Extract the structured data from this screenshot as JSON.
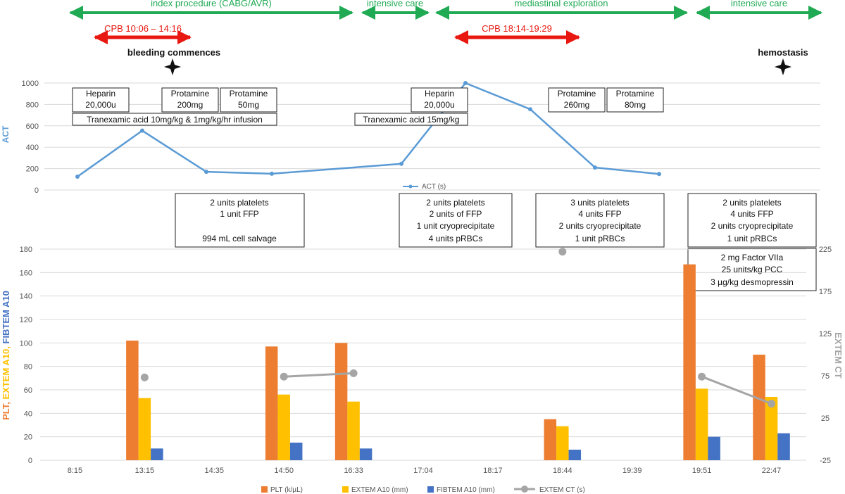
{
  "colors": {
    "phase": "#1faa53",
    "cpb": "#e8170f",
    "act_line": "#5b9bd5",
    "plt": "#ed7d31",
    "extem_a10": "#ffc000",
    "fibtem_a10": "#4472c4",
    "extem_ct": "#a5a5a5",
    "grid": "#d9d9d9"
  },
  "phases": [
    {
      "label": "index procedure  (CABG/AVR)"
    },
    {
      "label": "intensive  care"
    },
    {
      "label": "mediastinal  exploration"
    },
    {
      "label": "intensive  care"
    }
  ],
  "cpb": [
    {
      "label": "CPB 10:06 – 14:16"
    },
    {
      "label": "CPB 18:14-19:29"
    }
  ],
  "events": [
    {
      "label": "bleeding commences",
      "icon": "star-icon"
    },
    {
      "label": "hemostasis",
      "icon": "star-icon"
    }
  ],
  "drug_boxes": [
    {
      "lines": [
        "Heparin",
        "20,000u"
      ]
    },
    {
      "lines": [
        "Protamine",
        "200mg"
      ]
    },
    {
      "lines": [
        "Protamine",
        "50mg"
      ]
    },
    {
      "lines": [
        "Tranexamic acid 10mg/kg & 1mg/kg/hr infusion"
      ]
    },
    {
      "lines": [
        "Heparin",
        "20,000u"
      ]
    },
    {
      "lines": [
        "Tranexamic acid 15mg/kg"
      ]
    },
    {
      "lines": [
        "Protamine",
        "260mg"
      ]
    },
    {
      "lines": [
        "Protamine",
        "80mg"
      ]
    }
  ],
  "transfusion_boxes": [
    {
      "lines": [
        "2 units platelets",
        "1 unit FFP",
        "",
        "994 mL cell salvage"
      ]
    },
    {
      "lines": [
        "2 units platelets",
        "2 units of FFP",
        "1 unit cryoprecipitate",
        "4 units pRBCs"
      ]
    },
    {
      "lines": [
        "3 units platelets",
        "4 units FFP",
        "2 units cryoprecipitate",
        "1 unit pRBCs"
      ]
    },
    {
      "lines": [
        "2 units platelets",
        "4 units FFP",
        "2 units cryoprecipitate",
        "1 unit pRBCs"
      ]
    },
    {
      "lines": [
        "2 mg Factor VIIa",
        "25 units/kg  PCC",
        "3 µg/kg desmopressin"
      ]
    }
  ],
  "chart_data": [
    {
      "type": "line",
      "ylabel": "ACT",
      "ylim": [
        0,
        1000
      ],
      "yticks": [
        "0",
        "200",
        "400",
        "600",
        "800",
        "1000"
      ],
      "series": [
        {
          "name": "ACT (s)",
          "x": [
            "8:15",
            "13:15",
            "14:35",
            "14:50",
            "17:04",
            "18:17",
            "18:44",
            "19:39",
            "19:51"
          ],
          "values": [
            125,
            555,
            170,
            152,
            245,
            1000,
            755,
            210,
            150
          ]
        }
      ],
      "legend": "inside, bottom-center"
    },
    {
      "type": "bar",
      "categories": [
        "8:15",
        "13:15",
        "14:35",
        "14:50",
        "16:33",
        "17:04",
        "18:17",
        "18:44",
        "19:39",
        "19:51",
        "22:47"
      ],
      "ylabel": "PLT, EXTEM A10, FIBTEM A10",
      "y2label": "EXTEM CT",
      "ylim": [
        0,
        180
      ],
      "y2lim": [
        -25,
        225
      ],
      "yticks": [
        "0",
        "20",
        "40",
        "60",
        "80",
        "100",
        "120",
        "140",
        "160",
        "180"
      ],
      "y2ticks": [
        "-25",
        "25",
        "75",
        "125",
        "175",
        "225"
      ],
      "grid": true,
      "legend": "bottom",
      "series": [
        {
          "name": "PLT (k/µL)",
          "values": [
            null,
            102,
            null,
            97,
            100,
            null,
            null,
            35,
            null,
            167,
            90
          ]
        },
        {
          "name": "EXTEM A10 (mm)",
          "values": [
            null,
            53,
            null,
            56,
            50,
            null,
            null,
            29,
            null,
            61,
            54
          ]
        },
        {
          "name": "FIBTEM A10 (mm)",
          "values": [
            null,
            10,
            null,
            15,
            10,
            null,
            null,
            9,
            null,
            20,
            23
          ]
        },
        {
          "name": "EXTEM CT (s)",
          "axis": "right",
          "values": [
            null,
            73,
            null,
            74,
            78,
            null,
            null,
            222,
            null,
            74,
            42
          ]
        }
      ]
    }
  ]
}
